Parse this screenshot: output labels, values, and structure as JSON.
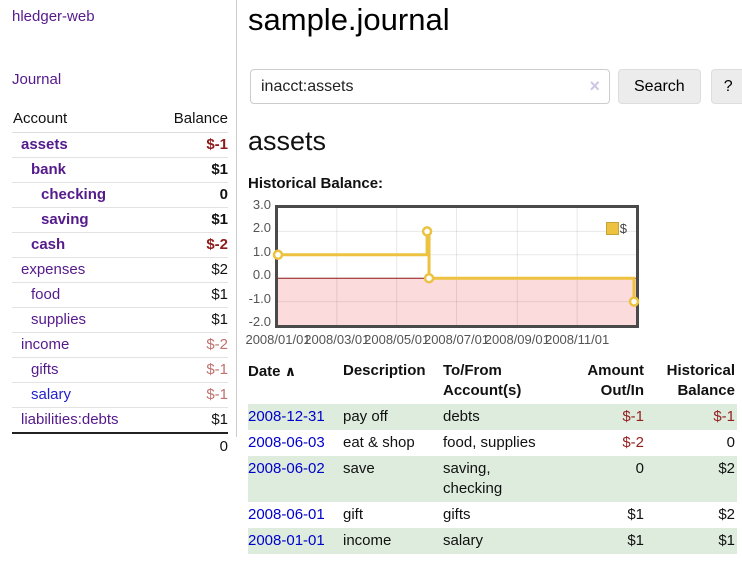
{
  "app": {
    "name": "hledger-web"
  },
  "sidebar": {
    "journal_link": "Journal",
    "accounts": {
      "header_account": "Account",
      "header_balance": "Balance",
      "rows": [
        {
          "name": "assets",
          "balance": "$-1"
        },
        {
          "name": "bank",
          "balance": "$1"
        },
        {
          "name": "checking",
          "balance": "0"
        },
        {
          "name": "saving",
          "balance": "$1"
        },
        {
          "name": "cash",
          "balance": "$-2"
        },
        {
          "name": "expenses",
          "balance": "$2"
        },
        {
          "name": "food",
          "balance": "$1"
        },
        {
          "name": "supplies",
          "balance": "$1"
        },
        {
          "name": "income",
          "balance": "$-2"
        },
        {
          "name": "gifts",
          "balance": "$-1"
        },
        {
          "name": "salary",
          "balance": "$-1"
        },
        {
          "name": "liabilities:debts",
          "balance": "$1"
        }
      ],
      "total": "0"
    }
  },
  "main": {
    "title": "sample.journal",
    "search": {
      "value": "inacct:assets",
      "clear_icon": "×",
      "search_button": "Search",
      "help_button": "?"
    },
    "account_heading": "assets",
    "section_label": "Historical Balance:"
  },
  "chart_data": {
    "type": "line",
    "step": true,
    "title": "Historical Balance",
    "series": [
      {
        "name": "$",
        "color": "#edc240",
        "points": [
          [
            "2008-01-01",
            1
          ],
          [
            "2008-06-01",
            2
          ],
          [
            "2008-06-03",
            0
          ],
          [
            "2008-12-31",
            -1
          ]
        ]
      }
    ],
    "xlim": [
      "2008-01-01",
      "2008-12-31"
    ],
    "ylim": [
      -2,
      3
    ],
    "x_ticks": [
      {
        "date": "2008-01-01",
        "label": "2008/01/01"
      },
      {
        "date": "2008-03-01",
        "label": "2008/03/01"
      },
      {
        "date": "2008-05-01",
        "label": "2008/05/01"
      },
      {
        "date": "2008-07-01",
        "label": "2008/07/01"
      },
      {
        "date": "2008-09-01",
        "label": "2008/09/01"
      },
      {
        "date": "2008-11-01",
        "label": "2008/11/01"
      }
    ],
    "y_ticks": [
      {
        "value": 3,
        "label": "3.0"
      },
      {
        "value": 2,
        "label": "2.0"
      },
      {
        "value": 1,
        "label": "1.0"
      },
      {
        "value": 0,
        "label": "0.0"
      },
      {
        "value": -1,
        "label": "-1.0"
      },
      {
        "value": -2,
        "label": "-2.0"
      }
    ],
    "legend_position": "top-right",
    "grid": true,
    "negative_region_color": "#fbdbdb",
    "zero_line_color": "#8e1a1a"
  },
  "register": {
    "headers": {
      "date": "Date",
      "sort_indicator": "∧",
      "description": "Description",
      "accounts": "To/From Account(s)",
      "amount": "Amount Out/In",
      "balance": "Historical Balance"
    },
    "rows": [
      {
        "date": "2008-12-31",
        "description": "pay off",
        "accounts": "debts",
        "amount": "$-1",
        "balance": "$-1"
      },
      {
        "date": "2008-06-03",
        "description": "eat & shop",
        "accounts": "food, supplies",
        "amount": "$-2",
        "balance": "0"
      },
      {
        "date": "2008-06-02",
        "description": "save",
        "accounts": "saving,\nchecking",
        "amount": "0",
        "balance": "$2"
      },
      {
        "date": "2008-06-01",
        "description": "gift",
        "accounts": "gifts",
        "amount": "$1",
        "balance": "$2"
      },
      {
        "date": "2008-01-01",
        "description": "income",
        "accounts": "salary",
        "amount": "$1",
        "balance": "$1"
      }
    ]
  }
}
